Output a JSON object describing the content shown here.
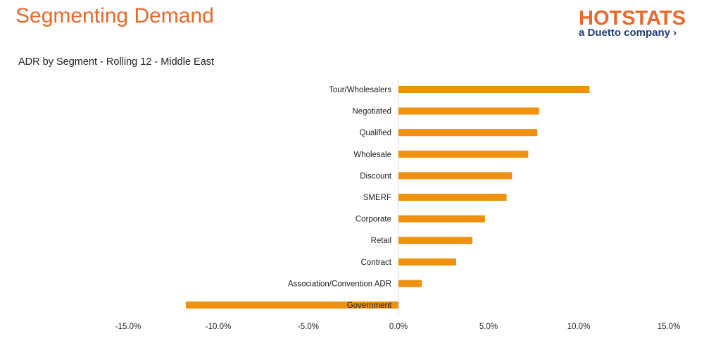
{
  "page": {
    "title": "Segmenting Demand"
  },
  "logo": {
    "main": "HOTSTATS",
    "sub": "a Duetto company ›",
    "colors": {
      "main": "#e8692c",
      "sub": "#1f3b7a"
    }
  },
  "chart_data": {
    "type": "bar",
    "orientation": "horizontal",
    "title": "ADR by Segment - Rolling 12 - Middle East",
    "xlabel": "",
    "ylabel": "",
    "categories": [
      "Tour/Wholesalers",
      "Negotiated",
      "Qualified",
      "Wholesale",
      "Discount",
      "SMERF",
      "Corporate",
      "Retail",
      "Contract",
      "Association/Convention ADR",
      "Government"
    ],
    "values": [
      10.6,
      7.8,
      7.7,
      7.2,
      6.3,
      6.0,
      4.8,
      4.1,
      3.2,
      1.3,
      -11.8
    ],
    "xlim": [
      -15,
      15
    ],
    "xticks": [
      "-15.0%",
      "-10.0%",
      "-5.0%",
      "0.0%",
      "5.0%",
      "10.0%",
      "15.0%"
    ],
    "xtick_values": [
      -15,
      -10,
      -5,
      0,
      5,
      10,
      15
    ],
    "grid": false,
    "legend": "none",
    "bar_color": "#f0900f",
    "axis_color": "#d9d9d9"
  }
}
